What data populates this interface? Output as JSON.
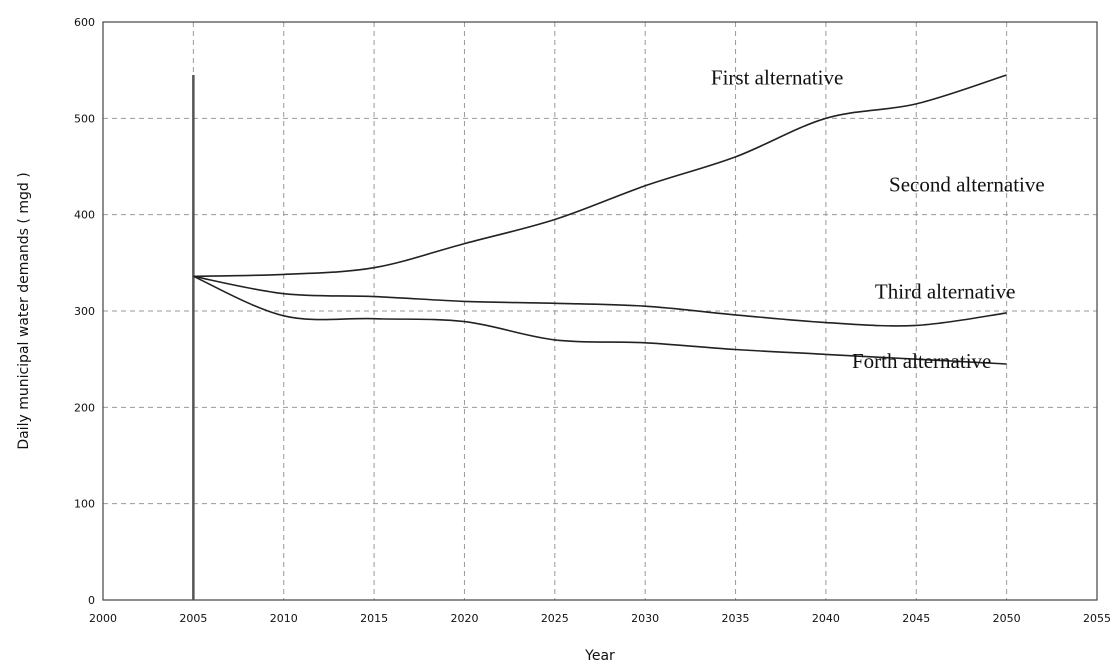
{
  "chart_data": {
    "type": "line",
    "title": "",
    "xlabel": "Year",
    "ylabel": "Daily municipal water demands ( mgd )",
    "xlim": [
      2000,
      2055
    ],
    "ylim": [
      0,
      600
    ],
    "x_ticks": [
      2000,
      2005,
      2010,
      2015,
      2020,
      2025,
      2030,
      2035,
      2040,
      2045,
      2050,
      2055
    ],
    "y_ticks": [
      0,
      100,
      200,
      300,
      400,
      500,
      600
    ],
    "grid": true,
    "legend": "none",
    "series": [
      {
        "x": [
          2005,
          2010,
          2015,
          2020,
          2025,
          2030,
          2035,
          2040,
          2045,
          2050
        ],
        "values": [
          336,
          338,
          345,
          370,
          395,
          430,
          460,
          500,
          515,
          545
        ]
      },
      {
        "x": [
          2005,
          2010,
          2015,
          2020,
          2025,
          2030,
          2035,
          2040,
          2045,
          2050
        ],
        "values": [
          336,
          318,
          315,
          310,
          308,
          305,
          296,
          288,
          285,
          298
        ]
      },
      {
        "x": [
          2005,
          2010,
          2015,
          2020,
          2025,
          2030,
          2035,
          2040,
          2045,
          2050
        ],
        "values": [
          336,
          295,
          292,
          289,
          270,
          267,
          260,
          255,
          250,
          245
        ]
      }
    ],
    "annotations": [
      {
        "text": "First alternative",
        "x": 2037.3,
        "y": 535
      },
      {
        "text": "Second alternative",
        "x": 2047.8,
        "y": 424
      },
      {
        "text": "Third alternative",
        "x": 2046.6,
        "y": 313
      },
      {
        "text": "Forth alternative",
        "x": 2045.3,
        "y": 241
      }
    ]
  }
}
